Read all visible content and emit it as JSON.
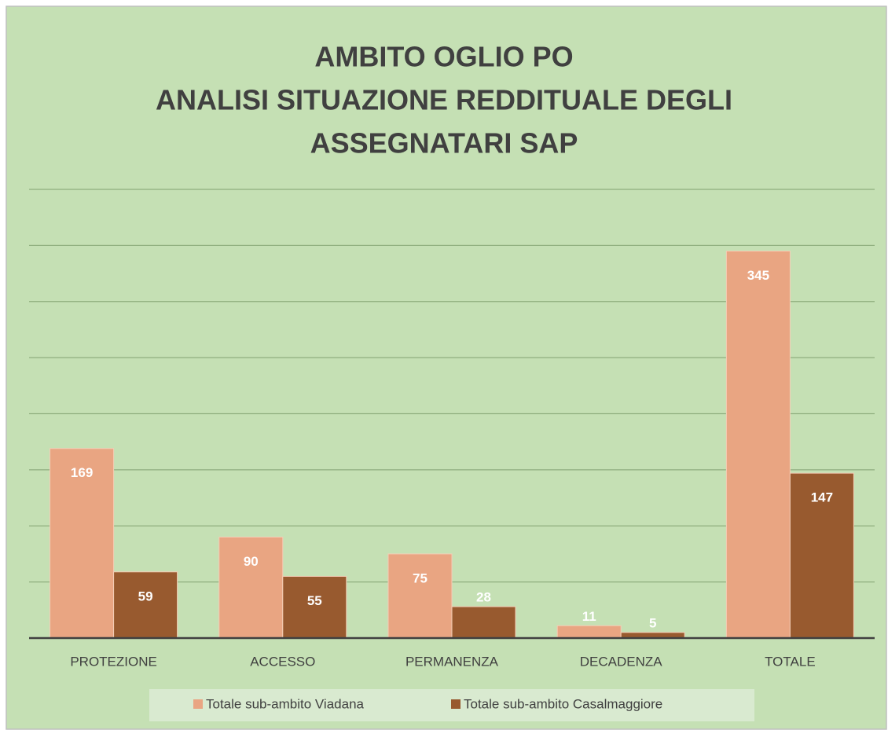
{
  "chart_data": {
    "type": "bar",
    "title": [
      "AMBITO OGLIO PO",
      "ANALISI SITUAZIONE REDDITUALE DEGLI",
      "ASSEGNATARI SAP"
    ],
    "categories": [
      "PROTEZIONE",
      "ACCESSO",
      "PERMANENZA",
      "DECADENZA",
      "TOTALE"
    ],
    "series": [
      {
        "name": "Totale sub-ambito Viadana",
        "color": "#e9a582",
        "values": [
          169,
          90,
          75,
          11,
          345
        ]
      },
      {
        "name": "Totale sub-ambito Casalmaggiore",
        "color": "#985a2f",
        "values": [
          59,
          55,
          28,
          5,
          147
        ]
      }
    ],
    "ylim": [
      0,
      400
    ],
    "yticks": [
      0,
      50,
      100,
      150,
      200,
      250,
      300,
      350,
      400
    ],
    "grid": true,
    "legend": "bottom"
  }
}
